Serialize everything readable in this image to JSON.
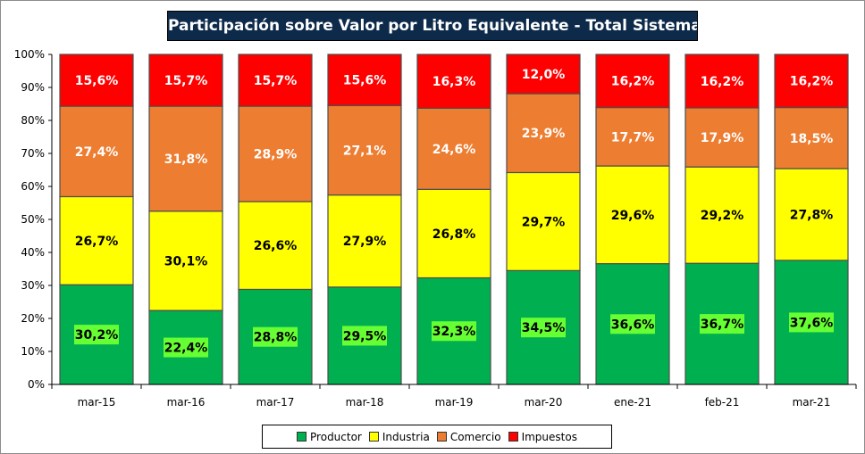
{
  "chart_data": {
    "type": "bar",
    "stacked": true,
    "title": "Participación sobre Valor por Litro Equivalente - Total Sistema",
    "categories": [
      "mar-15",
      "mar-16",
      "mar-17",
      "mar-18",
      "mar-19",
      "mar-20",
      "ene-21",
      "feb-21",
      "mar-21"
    ],
    "ylim": [
      0,
      100
    ],
    "yticks": [
      "0%",
      "10%",
      "20%",
      "30%",
      "40%",
      "50%",
      "60%",
      "70%",
      "80%",
      "90%",
      "100%"
    ],
    "series": [
      {
        "name": "Productor",
        "color": "#00b050",
        "labelColor": "#000000",
        "labelBg": "#66ff33",
        "values": [
          30.2,
          22.4,
          28.8,
          29.5,
          32.3,
          34.5,
          36.6,
          36.7,
          37.6
        ],
        "labels": [
          "30,2%",
          "22,4%",
          "28,8%",
          "29,5%",
          "32,3%",
          "34,5%",
          "36,6%",
          "36,7%",
          "37,6%"
        ]
      },
      {
        "name": "Industria",
        "color": "#ffff00",
        "labelColor": "#000000",
        "values": [
          26.7,
          30.1,
          26.6,
          27.9,
          26.8,
          29.7,
          29.6,
          29.2,
          27.8
        ],
        "labels": [
          "26,7%",
          "30,1%",
          "26,6%",
          "27,9%",
          "26,8%",
          "29,7%",
          "29,6%",
          "29,2%",
          "27,8%"
        ]
      },
      {
        "name": "Comercio",
        "color": "#ed7d31",
        "labelColor": "#ffffff",
        "values": [
          27.4,
          31.8,
          28.9,
          27.1,
          24.6,
          23.9,
          17.7,
          17.9,
          18.5
        ],
        "labels": [
          "27,4%",
          "31,8%",
          "28,9%",
          "27,1%",
          "24,6%",
          "23,9%",
          "17,7%",
          "17,9%",
          "18,5%"
        ]
      },
      {
        "name": "Impuestos",
        "color": "#ff0000",
        "labelColor": "#ffffff",
        "values": [
          15.6,
          15.7,
          15.7,
          15.6,
          16.3,
          12.0,
          16.2,
          16.2,
          16.2
        ],
        "labels": [
          "15,6%",
          "15,7%",
          "15,7%",
          "15,6%",
          "16,3%",
          "12,0%",
          "16,2%",
          "16,2%",
          "16,2%"
        ]
      }
    ],
    "legend_position": "bottom",
    "grid": false
  }
}
